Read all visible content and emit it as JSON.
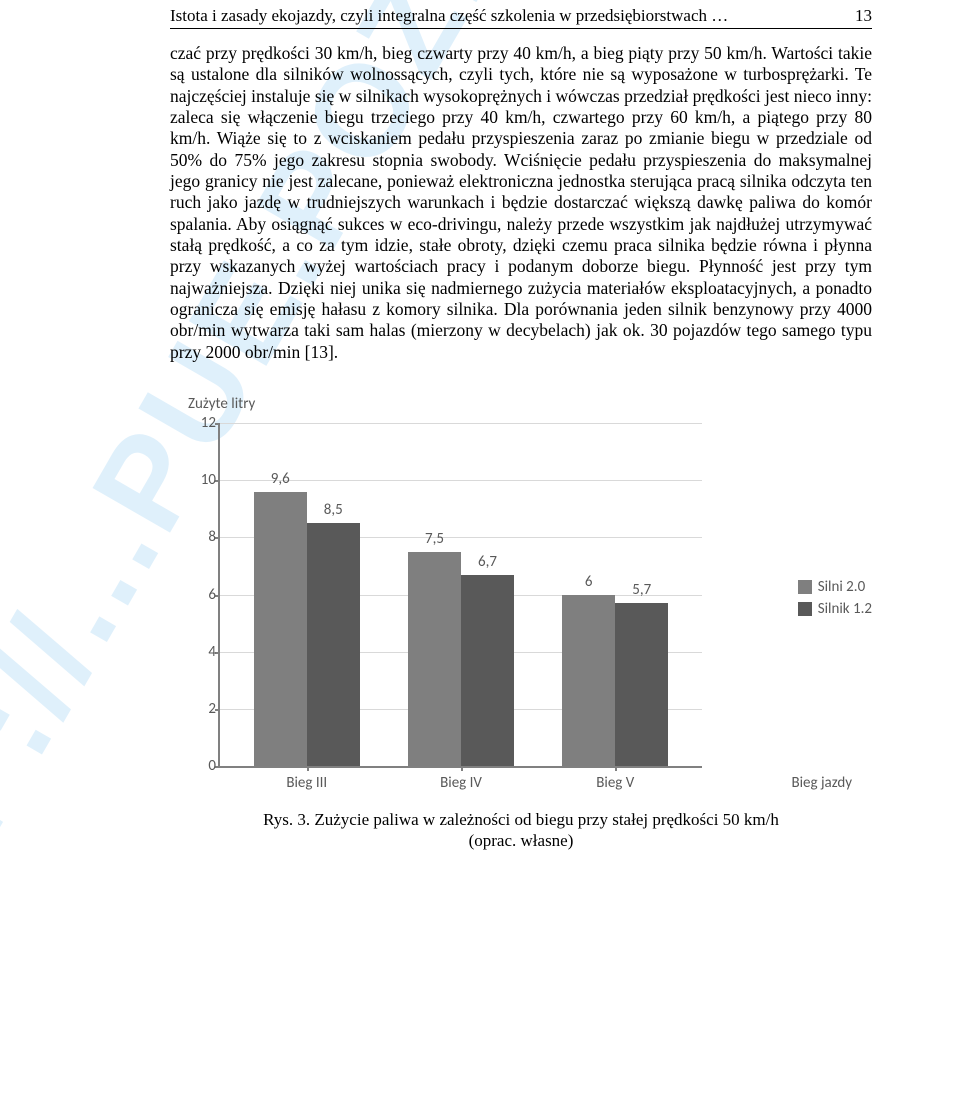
{
  "header": {
    "running_title": "Istota i zasady ekojazdy, czyli integralna część szkolenia w przedsiębiorstwach …",
    "page_number": "13"
  },
  "body": {
    "paragraph": "czać przy prędkości 30 km/h, bieg czwarty przy 40 km/h, a bieg piąty przy 50 km/h. Wartości takie są ustalone dla silników wolnossących, czyli tych, które nie są wyposażone w turbosprężarki. Te najczęściej instaluje się w silnikach wysokoprężnych i wówczas przedział prędkości jest nieco inny: zaleca się włączenie biegu trzeciego przy 40 km/h, czwartego przy 60 km/h, a piątego przy 80 km/h. Wiąże się to z wciskaniem pedału przyspieszenia zaraz po zmianie biegu w przedziale od 50% do 75% jego zakresu stopnia swobody. Wciśnięcie pedału przyspieszenia do maksymalnej jego granicy nie jest zalecane, ponieważ elektroniczna jednostka sterująca pracą silnika odczyta ten ruch jako jazdę w trudniejszych warunkach i będzie dostarczać większą dawkę paliwa do komór spalania. Aby osiągnąć sukces w eco-drivingu, należy przede wszystkim jak najdłużej utrzymywać stałą prędkość, a co za tym idzie, stałe obroty, dzięki czemu praca silnika będzie równa i płynna przy wskazanych wyżej wartościach pracy i podanym doborze biegu. Płynność jest przy tym najważniejsza. Dzięki niej unika się nadmiernego zużycia materiałów eksploatacyjnych, a ponadto ogranicza się emisję hałasu z komory silnika. Dla porównania jeden silnik benzynowy przy 4000 obr/min wytwarza taki sam halas (mierzony w decybelach) jak ok. 30 pojazdów tego samego typu przy 2000 obr/min [13]."
  },
  "chart": {
    "type": "bar",
    "y_axis_title": "Zużyte litry",
    "x_axis_title": "Bieg jazdy",
    "ylim": [
      0,
      12
    ],
    "ytick_step": 2,
    "categories": [
      "Bieg III",
      "Bieg IV",
      "Bieg V"
    ],
    "series": [
      {
        "name": "Silni 2.0",
        "color": "#7f7f7f",
        "values": [
          9.6,
          7.5,
          6.0
        ]
      },
      {
        "name": "Silnik 1.2",
        "color": "#595959",
        "values": [
          8.5,
          6.7,
          5.7
        ]
      }
    ],
    "bar_width_pct": 11,
    "bar_gap_pct": 0,
    "group_gap_pct": 10,
    "left_pad_pct": 7,
    "grid_color": "#d9d9d9",
    "axis_color": "#808080",
    "label_color": "#595959",
    "label_fontsize": 15,
    "label_font": "Calibri, Arial, sans-serif",
    "background": "#ffffff"
  },
  "caption": {
    "line1": "Rys. 3. Zużycie paliwa w zależności od biegu przy stałej prędkości 50 km/h",
    "line2": "(oprac. własne)"
  },
  "watermark": "HTTP://...PUE.POZNAN.PL/"
}
